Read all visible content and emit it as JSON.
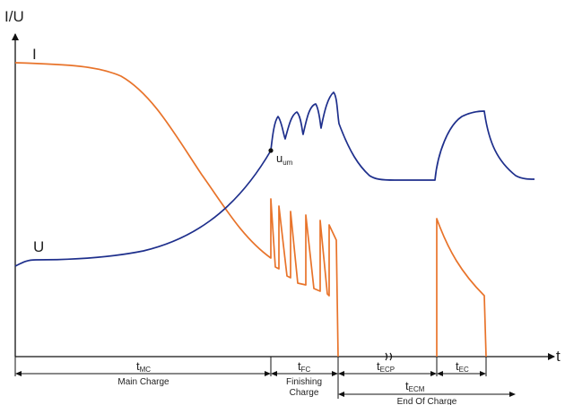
{
  "axes": {
    "y_label": "I/U",
    "x_label": "t"
  },
  "curves": {
    "current": {
      "label": "I",
      "color": "#e8732a"
    },
    "voltage": {
      "label": "U",
      "color": "#1e2f8c"
    }
  },
  "markers": {
    "u_um": {
      "base": "u",
      "sub": "um"
    }
  },
  "phases": {
    "t_mc": {
      "base": "t",
      "sub": "MC"
    },
    "t_fc": {
      "base": "t",
      "sub": "FC"
    },
    "t_ecp": {
      "base": "t",
      "sub": "ECP"
    },
    "t_ec": {
      "base": "t",
      "sub": "EC"
    },
    "t_ecm": {
      "base": "t",
      "sub": "ECM"
    }
  },
  "phase_labels": {
    "main_charge": "Main Charge",
    "finishing_line1": "Finishing",
    "finishing_line2": "Charge",
    "end_of_charge": "End Of Charge"
  },
  "colors": {
    "axis": "#111111",
    "text": "#222222"
  }
}
